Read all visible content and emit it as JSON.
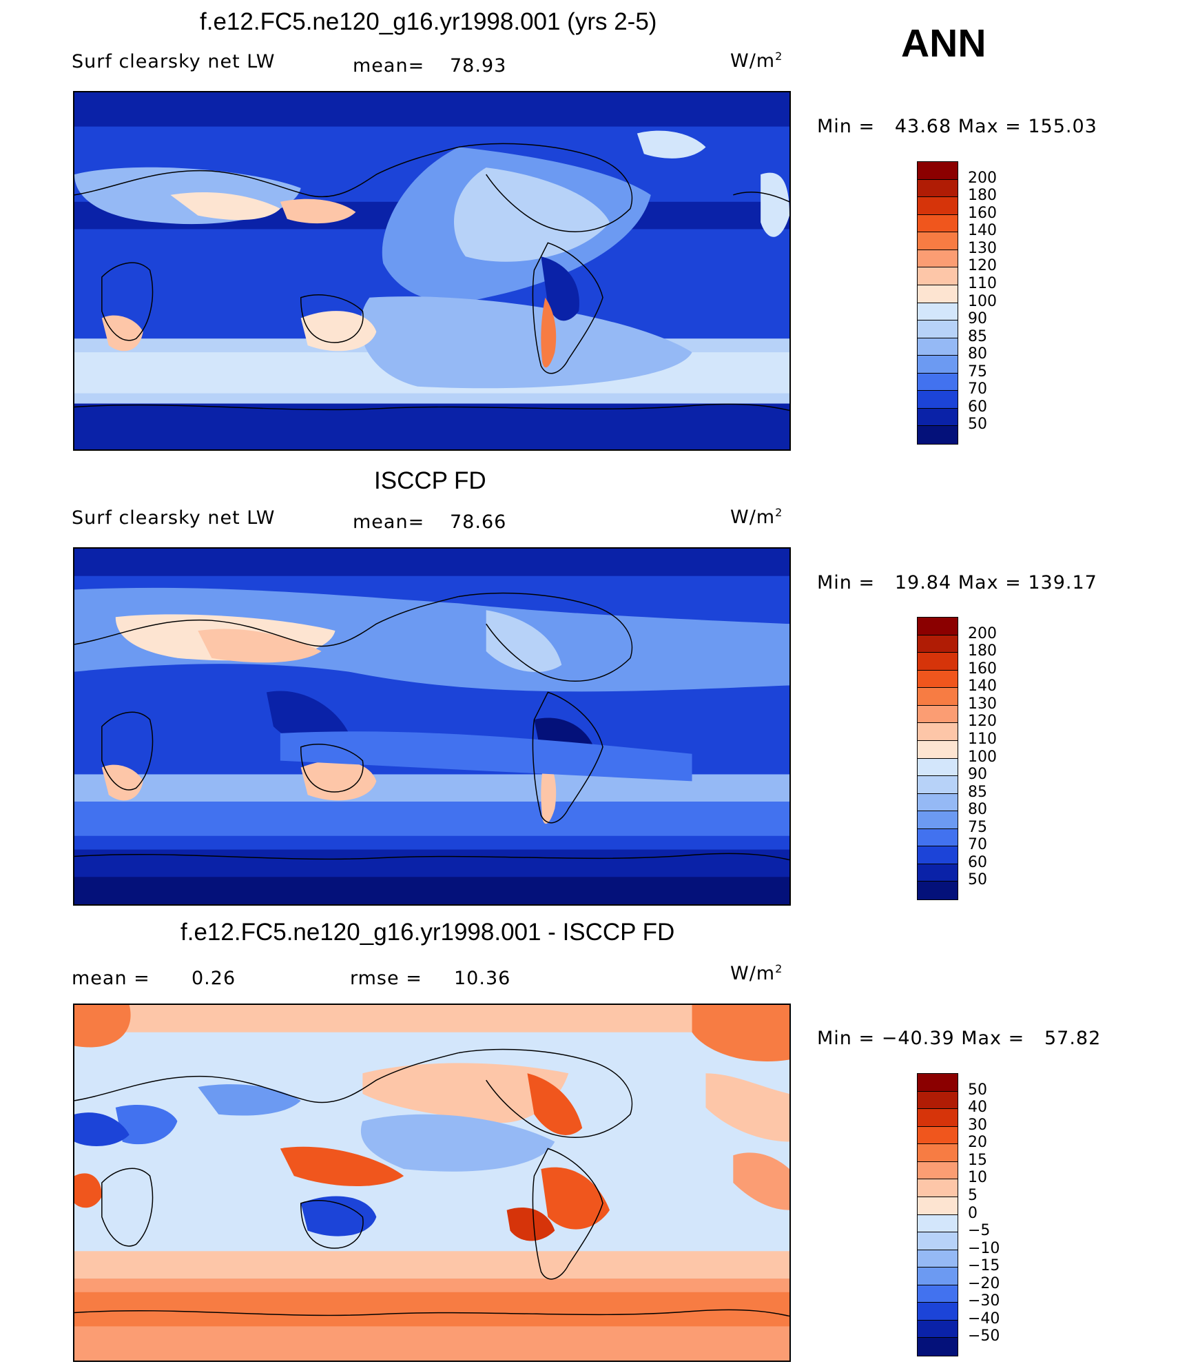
{
  "season": "ANN",
  "panels": [
    {
      "title": "f.e12.FC5.ne120_g16.yr1998.001 (yrs 2-5)",
      "variable": "Surf clearsky net LW",
      "stat1_label": "mean=",
      "stat1_value": "78.93",
      "stat2_label": "",
      "stat2_value": "",
      "units": "W/m",
      "units_exp": "2",
      "minmax": "Min =   43.68 Max = 155.03"
    },
    {
      "title": "ISCCP FD",
      "variable": "Surf clearsky net LW",
      "stat1_label": "mean=",
      "stat1_value": "78.66",
      "stat2_label": "",
      "stat2_value": "",
      "units": "W/m",
      "units_exp": "2",
      "minmax": "Min =   19.84 Max = 139.17"
    },
    {
      "title": "f.e12.FC5.ne120_g16.yr1998.001 - ISCCP FD",
      "variable": "",
      "stat1_label": "mean =",
      "stat1_value": "0.26",
      "stat2_label": "rmse =",
      "stat2_value": "10.36",
      "units": "W/m",
      "units_exp": "2",
      "minmax": "Min = −40.39 Max =   57.82"
    }
  ],
  "chart_data": [
    {
      "type": "heatmap",
      "title": "f.e12.FC5.ne120_g16.yr1998.001 (yrs 2-5)",
      "variable": "Surf clearsky net LW",
      "units": "W/m2",
      "mean": 78.93,
      "min": 43.68,
      "max": 155.03,
      "levels": [
        "200",
        "180",
        "160",
        "140",
        "130",
        "120",
        "110",
        "100",
        "90",
        "85",
        "80",
        "75",
        "70",
        "60",
        "50"
      ],
      "colors": [
        "#8b0000",
        "#b01c05",
        "#d6340a",
        "#f0561d",
        "#f77c43",
        "#fb9d73",
        "#fdc6a8",
        "#fde4d1",
        "#d3e6fb",
        "#b7d2f8",
        "#95b9f5",
        "#6c9af2",
        "#4272ef",
        "#1c44d8",
        "#0a22a8",
        "#04117a"
      ]
    },
    {
      "type": "heatmap",
      "title": "ISCCP FD",
      "variable": "Surf clearsky net LW",
      "units": "W/m2",
      "mean": 78.66,
      "min": 19.84,
      "max": 139.17,
      "levels": [
        "200",
        "180",
        "160",
        "140",
        "130",
        "120",
        "110",
        "100",
        "90",
        "85",
        "80",
        "75",
        "70",
        "60",
        "50"
      ],
      "colors": [
        "#8b0000",
        "#b01c05",
        "#d6340a",
        "#f0561d",
        "#f77c43",
        "#fb9d73",
        "#fdc6a8",
        "#fde4d1",
        "#d3e6fb",
        "#b7d2f8",
        "#95b9f5",
        "#6c9af2",
        "#4272ef",
        "#1c44d8",
        "#0a22a8",
        "#04117a"
      ]
    },
    {
      "type": "heatmap",
      "title": "f.e12.FC5.ne120_g16.yr1998.001 - ISCCP FD",
      "units": "W/m2",
      "mean": 0.26,
      "rmse": 10.36,
      "min": -40.39,
      "max": 57.82,
      "levels": [
        "50",
        "40",
        "30",
        "20",
        "15",
        "10",
        "5",
        "0",
        "−5",
        "−10",
        "−15",
        "−20",
        "−30",
        "−40",
        "−50"
      ],
      "colors": [
        "#8b0000",
        "#b01c05",
        "#d6340a",
        "#f0561d",
        "#f77c43",
        "#fb9d73",
        "#fdc6a8",
        "#fde4d1",
        "#d3e6fb",
        "#b7d2f8",
        "#95b9f5",
        "#6c9af2",
        "#4272ef",
        "#1c44d8",
        "#0a22a8",
        "#04117a"
      ]
    }
  ]
}
